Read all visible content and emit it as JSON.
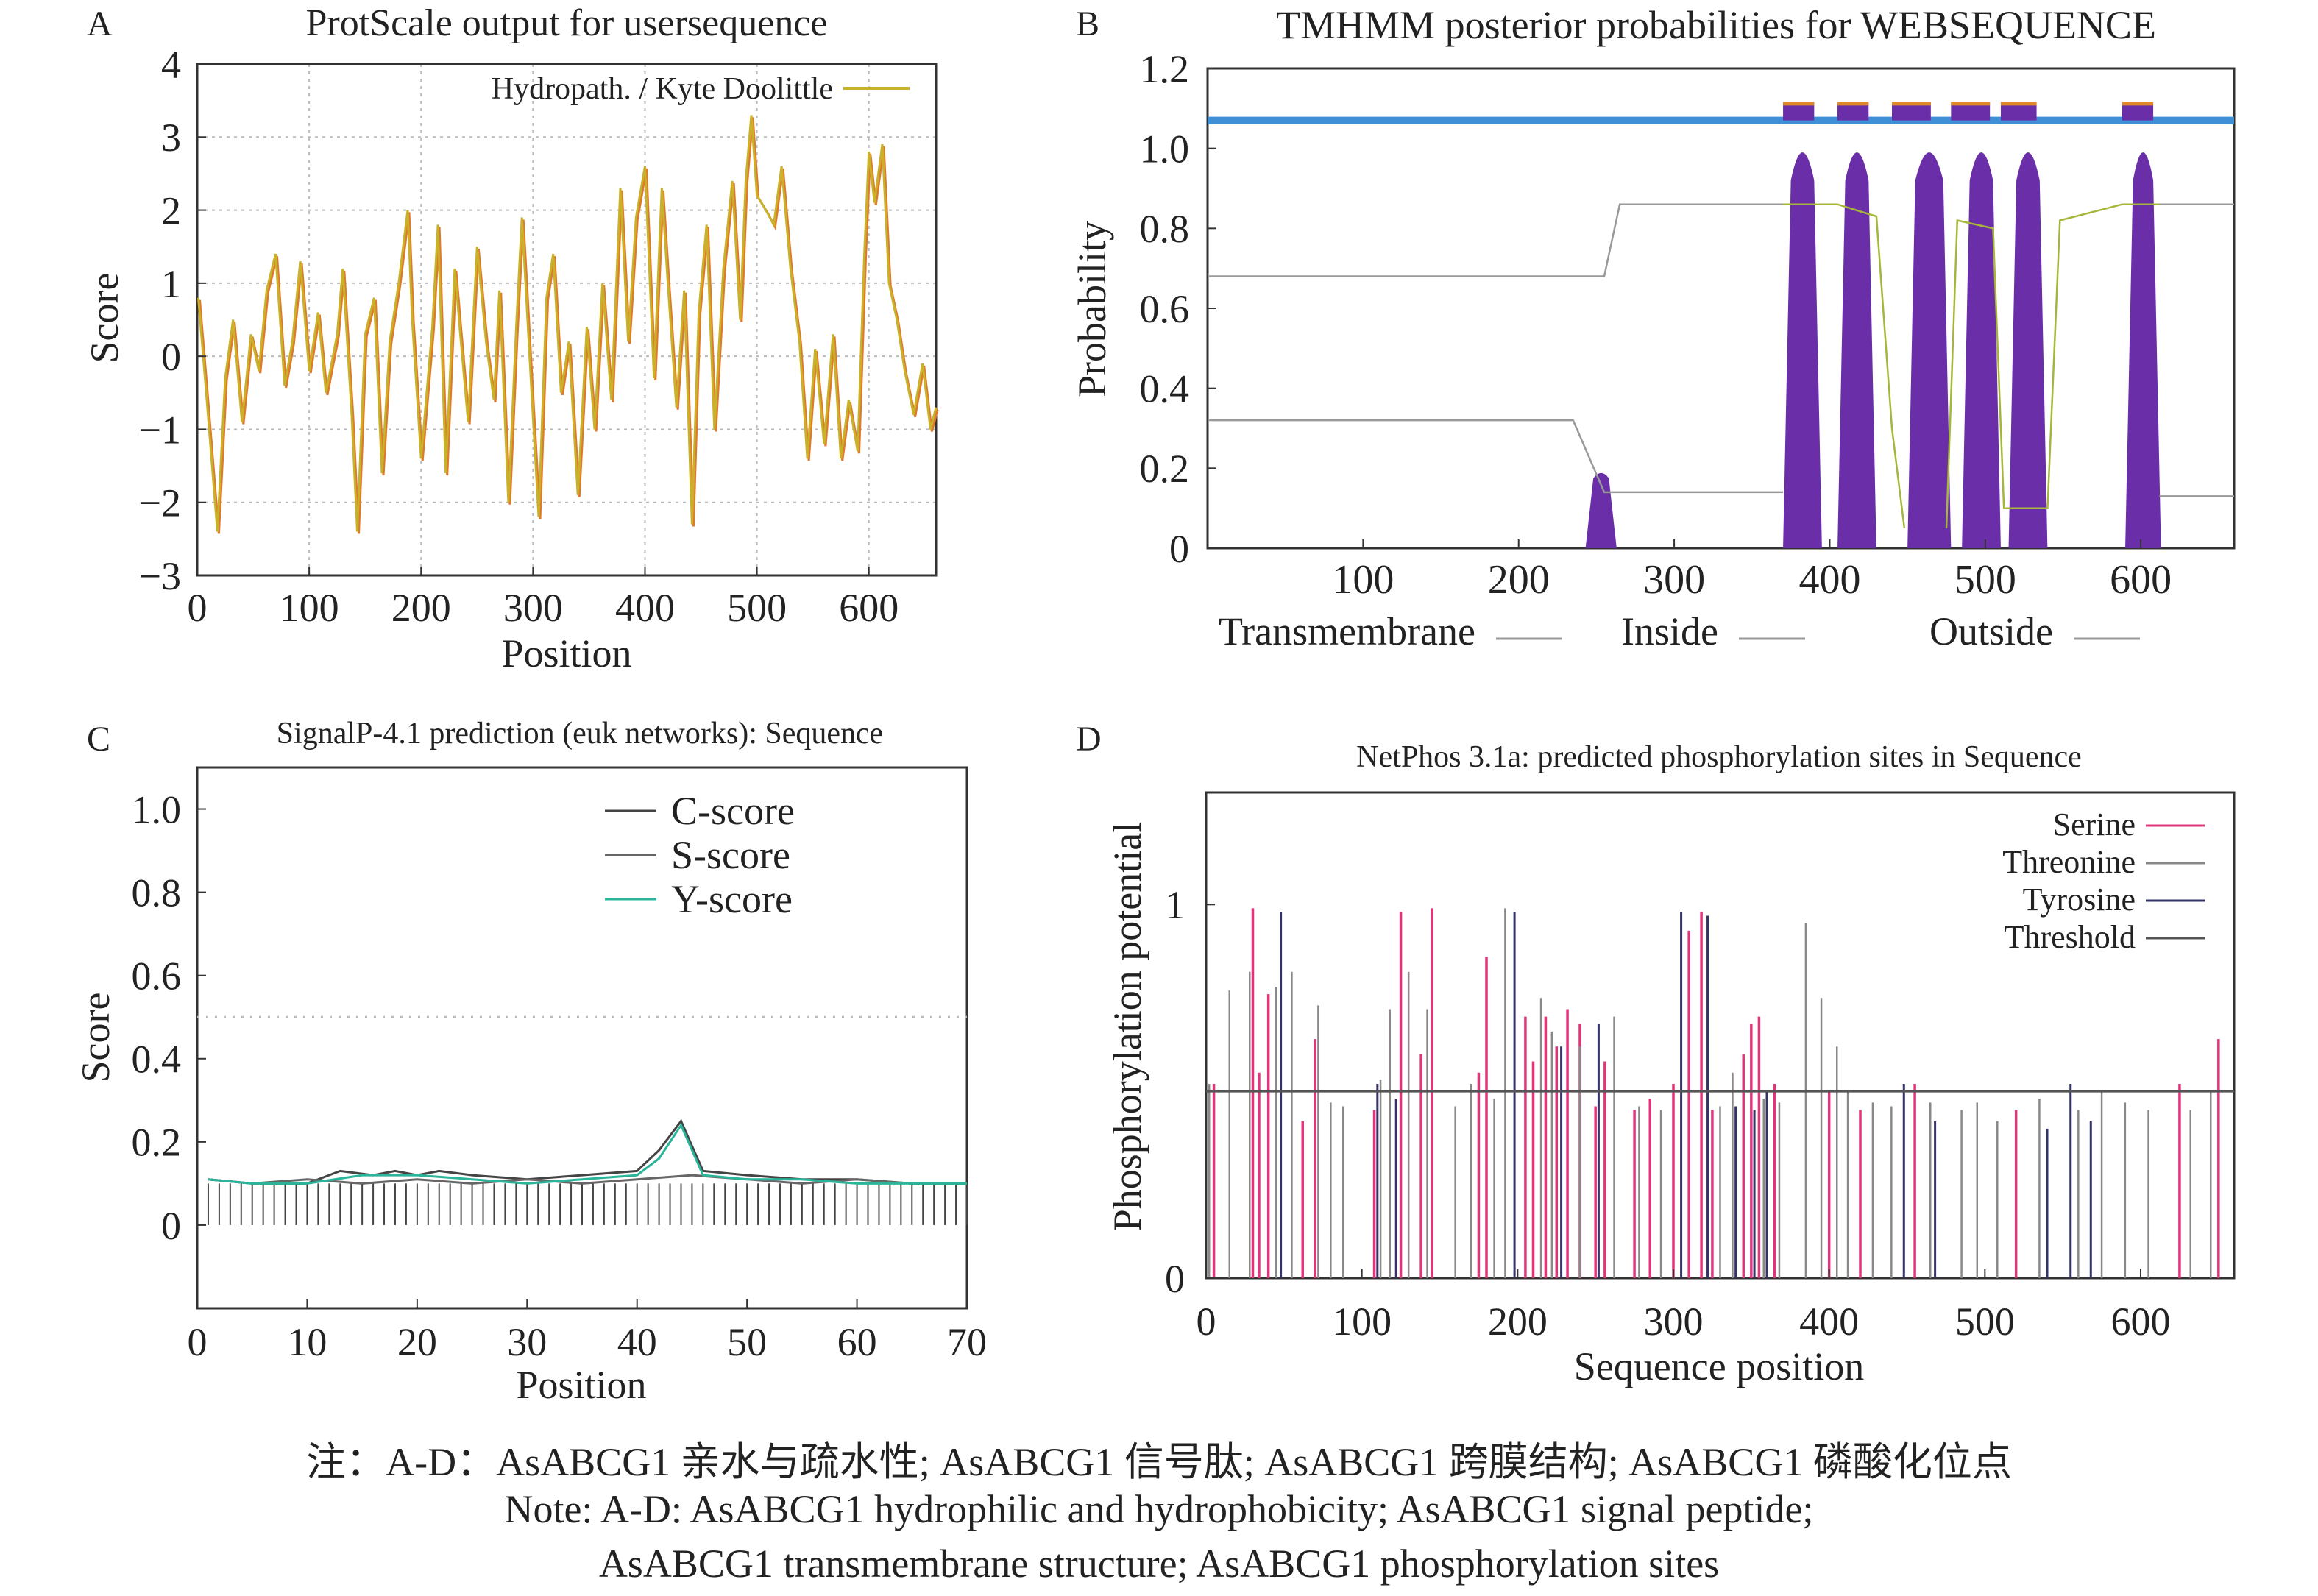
{
  "panels": {
    "A": {
      "letter": "A",
      "title": "ProtScale output for usersequence"
    },
    "B": {
      "letter": "B",
      "title": "TMHMM posterior probabilities for WEBSEQUENCE"
    },
    "C": {
      "letter": "C",
      "title": "SignalP-4.1 prediction (euk networks): Sequence"
    },
    "D": {
      "letter": "D",
      "title": "NetPhos 3.1a: predicted phosphorylation sites in Sequence"
    }
  },
  "colors": {
    "hydropathy": "#c9b22a",
    "hydropathy_alt": "#e07a2a",
    "tm_band": "#3f8fd6",
    "tm_fill": "#6a2fa8",
    "tm_top": "#e08a28",
    "inside": "#a7b63a",
    "outside": "#d84b4b",
    "serine": "#e0357a",
    "threonine": "#888888",
    "tyrosine": "#333366",
    "threshold": "#555555",
    "c_score": "#444444",
    "s_score": "#666666",
    "y_score": "#2ab59a"
  },
  "chart_data": [
    {
      "panel": "A",
      "type": "line",
      "title": "ProtScale output for usersequence",
      "xlabel": "Position",
      "ylabel": "Score",
      "xlim": [
        0,
        660
      ],
      "ylim": [
        -3,
        4
      ],
      "xticks": [
        "0",
        "100",
        "200",
        "300",
        "400",
        "500",
        "600"
      ],
      "yticks": [
        "4",
        "3",
        "2",
        "1",
        "0",
        "−1",
        "−2",
        "−3"
      ],
      "ytick_values": [
        4,
        3,
        2,
        1,
        0,
        -1,
        -2,
        -3
      ],
      "grid": true,
      "legend_position": "top-right",
      "series": [
        {
          "name": "Hydropath. / Kyte Doolittle",
          "x": [
            1,
            8,
            18,
            25,
            32,
            40,
            48,
            55,
            62,
            70,
            78,
            85,
            92,
            100,
            108,
            115,
            125,
            130,
            138,
            143,
            150,
            158,
            165,
            172,
            180,
            188,
            192,
            200,
            210,
            215,
            222,
            230,
            235,
            242,
            250,
            258,
            265,
            270,
            278,
            285,
            290,
            298,
            305,
            312,
            318,
            325,
            332,
            340,
            348,
            355,
            362,
            370,
            378,
            385,
            392,
            400,
            408,
            415,
            420,
            428,
            435,
            442,
            448,
            455,
            462,
            470,
            478,
            485,
            490,
            495,
            500,
            508,
            515,
            522,
            530,
            538,
            545,
            552,
            560,
            568,
            575,
            582,
            590,
            596,
            600,
            605,
            612,
            618,
            625,
            632,
            640,
            648,
            655,
            660
          ],
          "y": [
            0.8,
            -0.5,
            -2.4,
            -0.3,
            0.5,
            -0.9,
            0.3,
            -0.2,
            0.9,
            1.4,
            -0.4,
            0.2,
            1.3,
            -0.2,
            0.6,
            -0.5,
            0.3,
            1.2,
            -0.8,
            -2.4,
            0.3,
            0.8,
            -1.6,
            0.2,
            1.0,
            2.0,
            0.5,
            -1.4,
            0.4,
            1.8,
            -1.6,
            1.2,
            0.3,
            -0.9,
            1.5,
            0.2,
            -0.6,
            0.9,
            -2.0,
            0.4,
            1.9,
            -0.3,
            -2.2,
            0.8,
            1.4,
            -0.5,
            0.2,
            -1.9,
            0.4,
            -1.0,
            1.0,
            -0.6,
            2.3,
            0.2,
            1.9,
            2.6,
            -0.3,
            2.3,
            1.1,
            -0.7,
            0.9,
            -2.3,
            0.6,
            1.8,
            -1.0,
            1.2,
            2.4,
            0.5,
            2.4,
            3.3,
            2.2,
            2.0,
            1.8,
            2.6,
            1.2,
            0.2,
            -1.4,
            0.1,
            -1.2,
            0.3,
            -1.4,
            -0.6,
            -1.3,
            1.4,
            2.8,
            2.1,
            2.9,
            1.0,
            0.5,
            -0.2,
            -0.8,
            -0.1,
            -1.0,
            -0.7
          ]
        }
      ]
    },
    {
      "panel": "B",
      "type": "area",
      "title": "TMHMM posterior probabilities for WEBSEQUENCE",
      "ylabel": "Probability",
      "xlim": [
        0,
        660
      ],
      "ylim": [
        0,
        1.2
      ],
      "xticks": [
        "100",
        "200",
        "300",
        "400",
        "500",
        "600"
      ],
      "yticks": [
        "1.2",
        "1.0",
        "0.8",
        "0.6",
        "0.4",
        "0.2",
        "0"
      ],
      "ytick_values": [
        1.2,
        1.0,
        0.8,
        0.6,
        0.4,
        0.2,
        0
      ],
      "legend_position": "bottom",
      "legend": [
        {
          "name": "Transmembrane"
        },
        {
          "name": "Inside"
        },
        {
          "name": "Outside"
        }
      ],
      "transmembrane_peaks": [
        [
          243,
          263,
          0.19
        ],
        [
          370,
          395,
          1.0
        ],
        [
          405,
          430,
          1.0
        ],
        [
          450,
          478,
          1.0
        ],
        [
          485,
          510,
          1.0
        ],
        [
          515,
          540,
          1.0
        ],
        [
          590,
          613,
          1.0
        ]
      ],
      "topology_segments": [
        [
          370,
          390
        ],
        [
          405,
          425
        ],
        [
          440,
          465
        ],
        [
          478,
          503
        ],
        [
          510,
          533
        ],
        [
          588,
          608
        ]
      ],
      "line_high": {
        "x": [
          1,
          255,
          265,
          370
        ],
        "y": [
          0.68,
          0.68,
          0.86,
          0.86
        ]
      },
      "line_low": {
        "x": [
          1,
          235,
          255,
          370
        ],
        "y": [
          0.32,
          0.32,
          0.14,
          0.14
        ]
      },
      "line_high_right": {
        "x": [
          612,
          660
        ],
        "y": [
          0.86,
          0.86
        ]
      },
      "line_low_right": {
        "x": [
          612,
          660
        ],
        "y": [
          0.13,
          0.13
        ]
      }
    },
    {
      "panel": "C",
      "type": "line",
      "title": "SignalP-4.1 prediction (euk networks): Sequence",
      "xlabel": "Position",
      "ylabel": "Score",
      "xlim": [
        0,
        70
      ],
      "ylim": [
        -0.2,
        1.1
      ],
      "xticks": [
        "0",
        "10",
        "20",
        "30",
        "40",
        "50",
        "60",
        "70"
      ],
      "yticks": [
        "1.0",
        "0.8",
        "0.6",
        "0.4",
        "0.2",
        "0"
      ],
      "ytick_values": [
        1.0,
        0.8,
        0.6,
        0.4,
        0.2,
        0
      ],
      "legend_position": "top-right",
      "threshold": 0.5,
      "series": [
        {
          "name": "C-score",
          "x": [
            1,
            5,
            10,
            13,
            16,
            18,
            20,
            22,
            25,
            30,
            35,
            40,
            42,
            44,
            46,
            50,
            55,
            60,
            65,
            70
          ],
          "y": [
            0.11,
            0.1,
            0.1,
            0.13,
            0.12,
            0.13,
            0.12,
            0.13,
            0.12,
            0.11,
            0.12,
            0.13,
            0.18,
            0.25,
            0.13,
            0.12,
            0.11,
            0.11,
            0.1,
            0.1
          ]
        },
        {
          "name": "S-score",
          "x": [
            1,
            5,
            10,
            15,
            20,
            25,
            30,
            35,
            40,
            45,
            50,
            55,
            60,
            65,
            70
          ],
          "y": [
            0.11,
            0.1,
            0.11,
            0.1,
            0.11,
            0.1,
            0.11,
            0.1,
            0.11,
            0.12,
            0.11,
            0.1,
            0.11,
            0.1,
            0.1
          ]
        },
        {
          "name": "Y-score",
          "x": [
            1,
            5,
            10,
            15,
            20,
            25,
            30,
            35,
            40,
            42,
            44,
            46,
            50,
            55,
            60,
            65,
            70
          ],
          "y": [
            0.11,
            0.1,
            0.1,
            0.12,
            0.12,
            0.11,
            0.1,
            0.11,
            0.12,
            0.16,
            0.24,
            0.12,
            0.11,
            0.11,
            0.1,
            0.1,
            0.1
          ]
        }
      ]
    },
    {
      "panel": "D",
      "type": "bar",
      "title": "NetPhos 3.1a: predicted phosphorylation sites in Sequence",
      "xlabel": "Sequence position",
      "ylabel": "Phosphorylation potential",
      "xlim": [
        0,
        660
      ],
      "ylim": [
        0,
        1.3
      ],
      "xticks": [
        "0",
        "100",
        "200",
        "300",
        "400",
        "500",
        "600"
      ],
      "yticks": [
        "1",
        "0"
      ],
      "ytick_values": [
        1,
        0
      ],
      "threshold": 0.5,
      "legend_position": "top-right",
      "series": [
        {
          "name": "Serine",
          "x": [
            5,
            30,
            34,
            40,
            62,
            70,
            108,
            125,
            138,
            145,
            175,
            180,
            205,
            210,
            218,
            225,
            232,
            240,
            250,
            256,
            275,
            285,
            300,
            310,
            318,
            325,
            345,
            350,
            355,
            365,
            400,
            420,
            455,
            520,
            625,
            650
          ],
          "y": [
            0.52,
            0.99,
            0.55,
            0.76,
            0.42,
            0.64,
            0.45,
            0.98,
            0.6,
            0.99,
            0.55,
            0.86,
            0.7,
            0.58,
            0.7,
            0.62,
            0.72,
            0.68,
            0.46,
            0.58,
            0.45,
            0.48,
            0.52,
            0.93,
            0.98,
            0.45,
            0.6,
            0.68,
            0.7,
            0.52,
            0.5,
            0.45,
            0.52,
            0.45,
            0.52,
            0.64
          ]
        },
        {
          "name": "Threonine",
          "x": [
            2,
            15,
            28,
            45,
            55,
            72,
            80,
            88,
            112,
            118,
            130,
            142,
            160,
            170,
            185,
            192,
            198,
            215,
            222,
            240,
            262,
            278,
            292,
            322,
            330,
            338,
            358,
            368,
            385,
            395,
            405,
            412,
            428,
            440,
            465,
            485,
            495,
            508,
            535,
            560,
            575,
            590,
            605,
            632,
            645
          ],
          "y": [
            0.52,
            0.77,
            0.82,
            0.78,
            0.82,
            0.73,
            0.47,
            0.46,
            0.53,
            0.72,
            0.82,
            0.72,
            0.46,
            0.52,
            0.48,
            0.99,
            0.62,
            0.75,
            0.66,
            0.62,
            0.7,
            0.46,
            0.45,
            0.72,
            0.46,
            0.55,
            0.48,
            0.47,
            0.95,
            0.75,
            0.62,
            0.5,
            0.47,
            0.46,
            0.47,
            0.45,
            0.47,
            0.42,
            0.48,
            0.45,
            0.5,
            0.47,
            0.45,
            0.45,
            0.5
          ]
        },
        {
          "name": "Tyrosine",
          "x": [
            48,
            110,
            122,
            198,
            228,
            252,
            305,
            322,
            340,
            352,
            360,
            448,
            468,
            540,
            555,
            568
          ],
          "y": [
            0.98,
            0.52,
            0.48,
            0.98,
            0.62,
            0.68,
            0.98,
            0.97,
            0.46,
            0.45,
            0.5,
            0.52,
            0.42,
            0.4,
            0.52,
            0.42
          ]
        }
      ],
      "legend": [
        {
          "name": "Serine"
        },
        {
          "name": "Threonine"
        },
        {
          "name": "Tyrosine"
        },
        {
          "name": "Threshold"
        }
      ]
    }
  ],
  "caption": {
    "line1": "注：A-D：AsABCG1 亲水与疏水性; AsABCG1 信号肽; AsABCG1 跨膜结构; AsABCG1 磷酸化位点",
    "line2": "Note: A-D: AsABCG1 hydrophilic and hydrophobicity; AsABCG1 signal peptide;",
    "line3": "AsABCG1 transmembrane structure; AsABCG1 phosphorylation sites"
  }
}
